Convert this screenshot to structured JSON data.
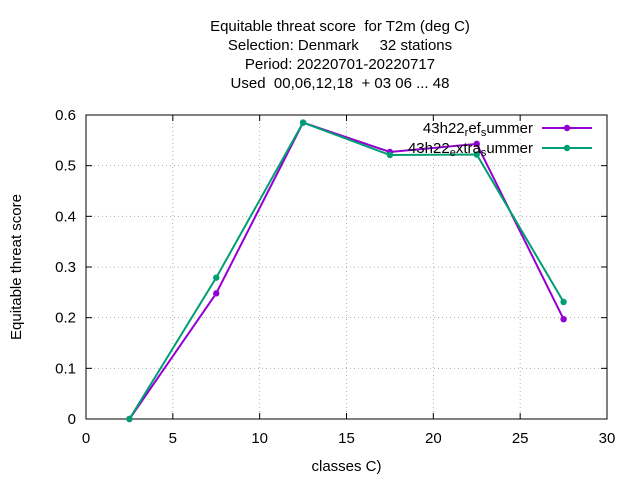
{
  "chart_data": {
    "type": "line",
    "title_lines": [
      "Equitable threat score  for T2m (deg C)",
      "Selection: Denmark     32 stations",
      "Period: 20220701-20220717",
      "Used  00,06,12,18  + 03 06 ... 48"
    ],
    "xlabel": "classes C)",
    "ylabel": "Equitable threat score",
    "xlim": [
      0,
      30
    ],
    "ylim": [
      0,
      0.6
    ],
    "xticks": [
      0,
      5,
      10,
      15,
      20,
      25,
      30
    ],
    "yticks": [
      0,
      0.1,
      0.2,
      0.3,
      0.4,
      0.5,
      0.6
    ],
    "grid": true,
    "legend_position": "top-right",
    "series": [
      {
        "name": "43h22_ref_summer",
        "legend_parts": [
          "43h22",
          "r",
          "ef",
          "s",
          "ummer"
        ],
        "color": "#9400d3",
        "x": [
          2.5,
          7.5,
          12.5,
          17.5,
          22.5,
          27.5
        ],
        "y": [
          0.0,
          0.248,
          0.585,
          0.527,
          0.543,
          0.197
        ]
      },
      {
        "name": "43h22_extra_summer",
        "legend_parts": [
          "43h22",
          "e",
          "xtra",
          "s",
          "ummer"
        ],
        "color": "#009e73",
        "x": [
          2.5,
          7.5,
          12.5,
          17.5,
          22.5,
          27.5
        ],
        "y": [
          0.0,
          0.279,
          0.585,
          0.521,
          0.522,
          0.231
        ]
      }
    ]
  }
}
